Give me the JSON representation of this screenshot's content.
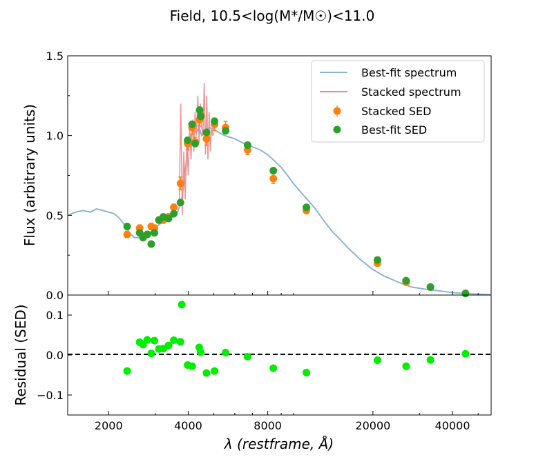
{
  "chart_data": {
    "type": "line+scatter",
    "title": "Field, 10.5<log(M*/M☉)<11.0",
    "xscale": "log",
    "xlim": [
      1400,
      56000
    ],
    "xticks": [
      2000,
      4000,
      8000,
      20000,
      40000
    ],
    "xticklabels": [
      "2000",
      "4000",
      "8000",
      "20000",
      "40000"
    ],
    "xlabel": "λ (restframe, Å)",
    "panels": {
      "top": {
        "ylabel": "Flux (arbitrary units)",
        "ylim": [
          0,
          1.5
        ],
        "yticks": [
          0,
          0.5,
          1.0,
          1.5
        ],
        "yticklabels": [
          "0.0",
          "0.5",
          "1.0",
          "1.5"
        ]
      },
      "bottom": {
        "ylabel": "Residual (SED)",
        "ylim": [
          -0.15,
          0.15
        ],
        "yticks": [
          -0.1,
          0.0,
          0.1
        ],
        "yticklabels": [
          "−0.1",
          "0.0",
          "0.1"
        ],
        "zero_line": "dashed"
      }
    },
    "legend": {
      "position": "upper-right",
      "entries": [
        {
          "label": "Best-fit spectrum",
          "color": "#8ab4d6",
          "marker": "line"
        },
        {
          "label": "Stacked spectrum",
          "color": "#e88c8c",
          "marker": "line"
        },
        {
          "label": "Stacked SED",
          "color": "#ff7f0e",
          "marker": "errorbar"
        },
        {
          "label": "Best-fit SED",
          "color": "#2ca02c",
          "marker": "dot"
        }
      ]
    },
    "best_fit_spectrum": {
      "color": "#8ab4d6",
      "x": [
        1400,
        1500,
        1600,
        1700,
        1800,
        1900,
        2000,
        2100,
        2200,
        2300,
        2400,
        2500,
        2600,
        2700,
        2800,
        2900,
        3000,
        3100,
        3200,
        3300,
        3400,
        3500,
        3600,
        3700,
        3800,
        3900,
        4000,
        4100,
        4200,
        4300,
        4400,
        4500,
        4600,
        4800,
        5000,
        5200,
        5500,
        6000,
        6500,
        7000,
        7500,
        8000,
        8500,
        9000,
        9500,
        10000,
        11000,
        12000,
        13000,
        14000,
        15000,
        16000,
        18000,
        20000,
        22000,
        25000,
        28000,
        32000,
        36000,
        40000,
        45000,
        50000,
        56000
      ],
      "y": [
        0.5,
        0.52,
        0.53,
        0.52,
        0.54,
        0.53,
        0.52,
        0.51,
        0.48,
        0.44,
        0.39,
        0.36,
        0.36,
        0.37,
        0.38,
        0.4,
        0.42,
        0.44,
        0.46,
        0.47,
        0.48,
        0.49,
        0.5,
        0.55,
        0.62,
        0.78,
        0.95,
        1.0,
        1.03,
        1.02,
        1.05,
        1.0,
        1.03,
        1.05,
        1.04,
        1.02,
        1.0,
        0.98,
        0.95,
        0.93,
        0.91,
        0.88,
        0.84,
        0.8,
        0.75,
        0.7,
        0.62,
        0.55,
        0.47,
        0.4,
        0.35,
        0.3,
        0.22,
        0.16,
        0.12,
        0.08,
        0.05,
        0.035,
        0.025,
        0.015,
        0.01,
        0.005,
        0.002
      ]
    },
    "stacked_spectrum": {
      "color": "#e88c8c",
      "x": [
        3700,
        3750,
        3800,
        3850,
        3900,
        3950,
        4000,
        4050,
        4100,
        4150,
        4200,
        4250,
        4300,
        4350,
        4400,
        4450,
        4500,
        4550,
        4600,
        4650,
        4700,
        4750,
        4800,
        4850,
        4900,
        4950,
        5000
      ],
      "y": [
        0.55,
        1.2,
        0.5,
        0.9,
        0.6,
        0.95,
        0.75,
        1.05,
        0.85,
        1.1,
        0.9,
        1.15,
        1.0,
        1.25,
        0.95,
        1.2,
        1.05,
        1.0,
        1.33,
        0.88,
        1.25,
        0.85,
        1.15,
        0.9,
        1.05,
        1.0,
        1.02
      ]
    },
    "stacked_sed": {
      "color": "#ff7f0e",
      "x": [
        2350,
        2620,
        2700,
        2800,
        2900,
        2980,
        3100,
        3220,
        3370,
        3530,
        3740,
        3980,
        4140,
        4250,
        4420,
        4460,
        4690,
        5030,
        5540,
        6710,
        8400,
        11200,
        20800,
        26700,
        33000,
        44800
      ],
      "y": [
        0.38,
        0.42,
        0.37,
        0.38,
        0.43,
        0.42,
        0.47,
        0.47,
        0.49,
        0.55,
        0.7,
        0.95,
        1.05,
        0.96,
        1.1,
        1.13,
        0.98,
        1.07,
        1.05,
        0.91,
        0.73,
        0.53,
        0.2,
        0.08,
        0.05,
        0.01
      ],
      "yerr": [
        0.02,
        0.02,
        0.02,
        0.02,
        0.02,
        0.02,
        0.02,
        0.02,
        0.02,
        0.02,
        0.04,
        0.04,
        0.04,
        0.03,
        0.04,
        0.04,
        0.04,
        0.04,
        0.04,
        0.03,
        0.03,
        0.02,
        0.01,
        0.01,
        0.005,
        0.005
      ]
    },
    "best_fit_sed": {
      "color": "#2ca02c",
      "x": [
        2350,
        2620,
        2700,
        2800,
        2900,
        2980,
        3100,
        3220,
        3370,
        3530,
        3740,
        3980,
        4140,
        4250,
        4420,
        4460,
        4690,
        5030,
        5540,
        6710,
        8400,
        11200,
        20800,
        26700,
        33000,
        44800
      ],
      "y": [
        0.43,
        0.39,
        0.36,
        0.38,
        0.32,
        0.39,
        0.47,
        0.49,
        0.48,
        0.51,
        0.58,
        0.97,
        1.07,
        0.95,
        1.16,
        1.12,
        1.02,
        1.09,
        1.03,
        0.94,
        0.78,
        0.55,
        0.22,
        0.09,
        0.05,
        0.01
      ]
    },
    "residual": {
      "color": "#00ee00",
      "x": [
        2350,
        2620,
        2700,
        2800,
        2900,
        2980,
        3100,
        3220,
        3370,
        3530,
        3740,
        3780,
        3980,
        4140,
        4400,
        4460,
        4690,
        5030,
        5540,
        6710,
        8400,
        11200,
        20800,
        26700,
        33000,
        44800
      ],
      "y": [
        -0.04,
        0.032,
        0.026,
        0.038,
        0.004,
        0.036,
        0.015,
        0.016,
        0.024,
        0.037,
        0.033,
        0.126,
        -0.025,
        -0.028,
        0.019,
        0.007,
        -0.045,
        -0.04,
        0.006,
        -0.004,
        -0.033,
        -0.044,
        -0.013,
        -0.028,
        -0.012,
        0.003
      ]
    }
  }
}
